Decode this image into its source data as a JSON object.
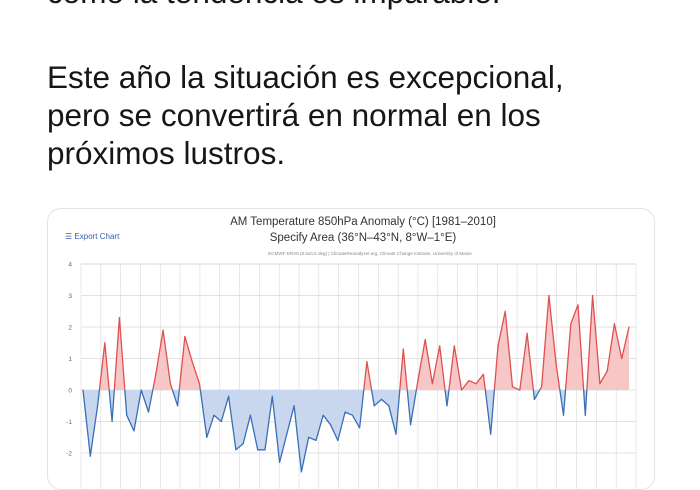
{
  "tweet": {
    "partial_line": "como la tendencia es imparable.",
    "para2_lines": [
      "Este año la situación es excepcional,",
      "pero se convertirá en normal en los",
      "próximos lustros."
    ]
  },
  "chart_ui": {
    "export_label": "Export Chart",
    "export_icon": "hamburger-menu-icon",
    "credit": "ECMWF ERA5 (0.5x0.5 deg) | ClimateReanalyzer.org, Climate Change Institute, University of Maine"
  },
  "colors": {
    "positive_fill": "#f7c6c6",
    "positive_line": "#e05050",
    "negative_fill": "#c8d6ee",
    "negative_line": "#3a6fb5",
    "text": "#14171a",
    "grid": "#d9d9d9"
  },
  "chart_data": {
    "type": "area",
    "title": "AM Temperature 850hPa Anomaly (°C) [1981–2010]",
    "subtitle": "Specify Area (36°N–43°N, 8°W–1°E)",
    "y_ticks": [
      "4",
      "3",
      "2",
      "1",
      "0",
      "-1",
      "-2"
    ],
    "ylim": [
      -2.4,
      4
    ],
    "grid": true,
    "values": [
      0.0,
      -2.1,
      -0.5,
      1.5,
      -1.0,
      2.3,
      -0.8,
      -1.3,
      0.0,
      -0.7,
      0.5,
      1.9,
      0.2,
      -0.5,
      1.7,
      0.9,
      0.2,
      -1.5,
      -0.8,
      -1.0,
      -0.2,
      -1.9,
      -1.7,
      -0.8,
      -1.9,
      -1.9,
      -0.2,
      -2.3,
      -1.4,
      -0.5,
      -2.6,
      -1.5,
      -1.6,
      -0.8,
      -1.1,
      -1.6,
      -0.7,
      -0.8,
      -1.2,
      0.9,
      -0.5,
      -0.3,
      -0.5,
      -1.4,
      1.3,
      -1.1,
      0.3,
      1.6,
      0.2,
      1.4,
      -0.5,
      1.4,
      0.0,
      0.3,
      0.2,
      0.5,
      -1.4,
      1.4,
      2.5,
      0.1,
      0.0,
      1.8,
      -0.3,
      0.1,
      3.0,
      0.8,
      -0.8,
      2.1,
      2.7,
      -0.8,
      3.0,
      0.2,
      0.6,
      2.1,
      1.0,
      2.0
    ]
  }
}
